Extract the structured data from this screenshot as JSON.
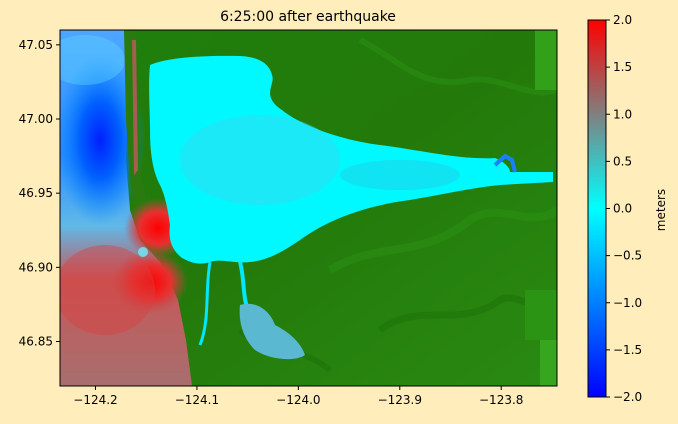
{
  "chart_data": {
    "type": "heatmap",
    "title": "6:25:00 after earthquake",
    "xlabel": "",
    "ylabel": "",
    "xlim": [
      -124.235,
      -123.745
    ],
    "ylim": [
      46.82,
      47.06
    ],
    "x_ticks": [
      {
        "value": -124.2,
        "label": "−124.2"
      },
      {
        "value": -124.1,
        "label": "−124.1"
      },
      {
        "value": -124.0,
        "label": "−124.0"
      },
      {
        "value": -123.9,
        "label": "−123.9"
      },
      {
        "value": -123.8,
        "label": "−123.8"
      }
    ],
    "y_ticks": [
      {
        "value": 46.85,
        "label": "46.85"
      },
      {
        "value": 46.9,
        "label": "46.90"
      },
      {
        "value": 46.95,
        "label": "46.95"
      },
      {
        "value": 47.0,
        "label": "47.00"
      },
      {
        "value": 47.05,
        "label": "47.05"
      }
    ],
    "colorbar": {
      "label": "meters",
      "range": [
        -2.0,
        2.0
      ],
      "ticks": [
        {
          "value": 2.0,
          "label": "2.0"
        },
        {
          "value": 1.5,
          "label": "1.5"
        },
        {
          "value": 1.0,
          "label": "1.0"
        },
        {
          "value": 0.5,
          "label": "0.5"
        },
        {
          "value": 0.0,
          "label": "0.0"
        },
        {
          "value": -0.5,
          "label": "−0.5"
        },
        {
          "value": -1.0,
          "label": "−1.0"
        },
        {
          "value": -1.5,
          "label": "−1.5"
        },
        {
          "value": -2.0,
          "label": "−2.0"
        }
      ],
      "colors": [
        "#0000FF",
        "#00FFFF",
        "#FF0000"
      ]
    },
    "land_color": "#1E7A0A",
    "grid": false
  }
}
